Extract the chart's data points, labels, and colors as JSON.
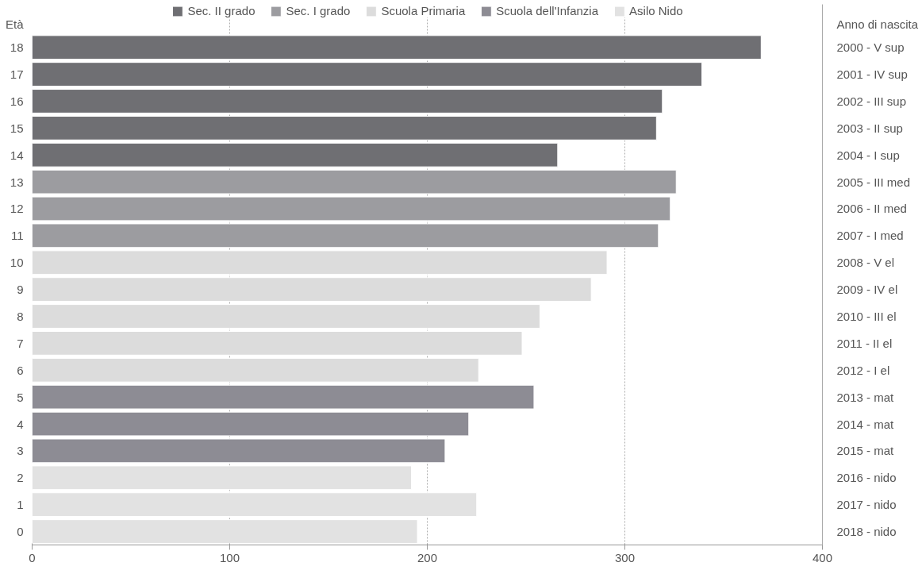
{
  "chart_data": {
    "type": "bar",
    "orientation": "horizontal",
    "ylabel": "Età",
    "y2label": "Anno di nascita",
    "categories": [
      "18",
      "17",
      "16",
      "15",
      "14",
      "13",
      "12",
      "11",
      "10",
      "9",
      "8",
      "7",
      "6",
      "5",
      "4",
      "3",
      "2",
      "1",
      "0"
    ],
    "series": [
      {
        "name": "Sec. II grado",
        "color": "#6f6f73",
        "values": [
          369,
          339,
          319,
          316,
          266,
          null,
          null,
          null,
          null,
          null,
          null,
          null,
          null,
          null,
          null,
          null,
          null,
          null,
          null
        ]
      },
      {
        "name": "Sec. I grado",
        "color": "#9c9ca0",
        "values": [
          null,
          null,
          null,
          null,
          null,
          326,
          323,
          317,
          null,
          null,
          null,
          null,
          null,
          null,
          null,
          null,
          null,
          null,
          null
        ]
      },
      {
        "name": "Scuola Primaria",
        "color": "#dcdcdc",
        "values": [
          null,
          null,
          null,
          null,
          null,
          null,
          null,
          null,
          291,
          283,
          257,
          248,
          226,
          null,
          null,
          null,
          null,
          null,
          null
        ]
      },
      {
        "name": "Scuola dell'Infanzia",
        "color": "#8d8c94",
        "values": [
          null,
          null,
          null,
          null,
          null,
          null,
          null,
          null,
          null,
          null,
          null,
          null,
          null,
          254,
          221,
          209,
          null,
          null,
          null
        ]
      },
      {
        "name": "Asilo Nido",
        "color": "#e2e2e2",
        "values": [
          null,
          null,
          null,
          null,
          null,
          null,
          null,
          null,
          null,
          null,
          null,
          null,
          null,
          null,
          null,
          null,
          192,
          225,
          195
        ]
      }
    ],
    "annotations": [
      "2000 - V sup",
      "2001 - IV sup",
      "2002 - III sup",
      "2003 - II sup",
      "2004 - I sup",
      "2005 - III med",
      "2006 - II med",
      "2007 - I med",
      "2008 - V el",
      "2009 - IV el",
      "2010 - III el",
      "2011 - II el",
      "2012 - I el",
      "2013 - mat",
      "2014 - mat",
      "2015 - mat",
      "2016 - nido",
      "2017 - nido",
      "2018 - nido"
    ],
    "xlim": [
      0,
      400
    ],
    "xticks": [
      0,
      100,
      200,
      300,
      400
    ],
    "grid": "x",
    "legend": "top"
  }
}
